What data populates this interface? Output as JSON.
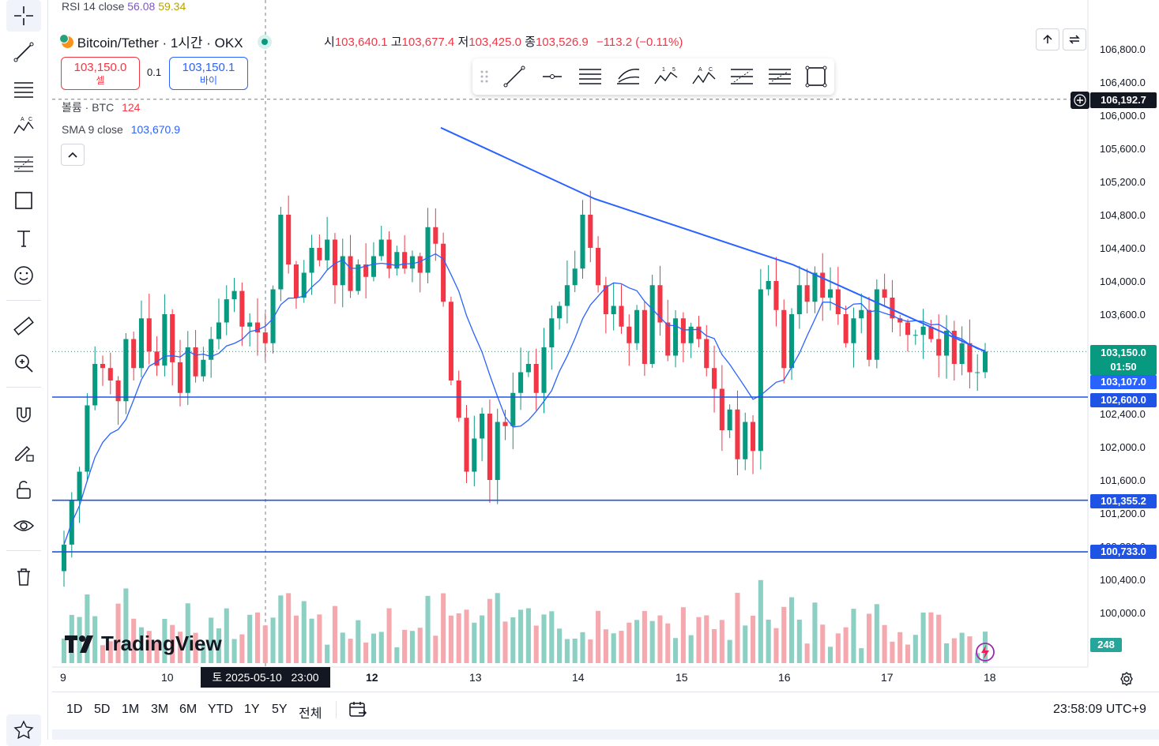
{
  "rsi": {
    "label": "RSI 14 close",
    "v1": "56.08",
    "v2": "59.34"
  },
  "header": {
    "symbol": "Bitcoin/Tether · 1시간 · OKX",
    "open_label": "시",
    "open": "103,640.1",
    "high_label": "고",
    "high": "103,677.4",
    "low_label": "저",
    "low": "103,425.0",
    "close_label": "종",
    "close": "103,526.9",
    "change": "−113.2 (−0.11%)"
  },
  "trade": {
    "sell_price": "103,150.0",
    "sell_label": "셀",
    "spread": "0.1",
    "buy_price": "103,150.1",
    "buy_label": "바이"
  },
  "volume_legend": {
    "label": "볼륨 · BTC",
    "value": "124"
  },
  "sma_legend": {
    "label": "SMA 9 close",
    "value": "103,670.9"
  },
  "crosshair_price": "106,192.7",
  "price_badge": {
    "price": "103,150.0",
    "countdown": "01:50"
  },
  "sma_badge": "103,107.0",
  "hline_badges": [
    "102,600.0",
    "101,355.2",
    "100,733.0"
  ],
  "volume_badge": "248",
  "y_axis_labels": [
    "106,800.0",
    "106,400.0",
    "106,000.0",
    "105,600.0",
    "105,200.0",
    "104,800.0",
    "104,400.0",
    "104,000.0",
    "103,600.0",
    "102,400.0",
    "102,000.0",
    "101,600.0",
    "101,200.0",
    "100,800.0",
    "100,400.0",
    "100,000.0",
    "00.0"
  ],
  "x_axis_labels": [
    "9",
    "10",
    "12",
    "13",
    "14",
    "15",
    "16",
    "17",
    "18"
  ],
  "crosshair_date": "토 2025-05-10   23:00",
  "watermark": "TradingView",
  "ranges": [
    "1D",
    "5D",
    "1M",
    "3M",
    "6M",
    "YTD",
    "1Y",
    "5Y",
    "전체"
  ],
  "clock": "23:58:09 UTC+9",
  "left_toolbar_icons": [
    "crosshair-icon",
    "trend-line-icon",
    "horizontal-lines-icon",
    "pattern-icon",
    "fib-icon",
    "rectangle-icon",
    "text-icon",
    "emoji-icon",
    "ruler-icon",
    "zoom-icon",
    "magnet-icon",
    "lock-draw-icon",
    "lock-icon",
    "eye-icon",
    "trash-icon",
    "star-icon"
  ],
  "drawing_toolbar_icons": [
    "drag-handle-icon",
    "trend-line-icon",
    "horizontal-ray-icon",
    "parallel-channel-icon",
    "pitchfork-icon",
    "elliott-wave-icon",
    "xabcd-pattern-icon",
    "fib-retracement-icon",
    "fib-extension-icon",
    "rectangle-icon"
  ],
  "colors": {
    "up": "#089981",
    "down": "#f23645",
    "sma": "#2962ff",
    "hline": "#1e53e5",
    "vol_up": "#8ccfc3",
    "vol_down": "#f5a9ae"
  },
  "chart_data": {
    "type": "candlestick",
    "symbol": "BTC/USDT",
    "timeframe": "1h",
    "ylim": [
      99600,
      107000
    ],
    "x_ticks": [
      "9",
      "10",
      "12",
      "13",
      "14",
      "15",
      "16",
      "17",
      "18"
    ],
    "horizontal_lines": [
      102600.0,
      101355.2,
      100733.0
    ],
    "trend_line_points": [
      [
        0,
        105850
      ],
      [
        1,
        104990
      ],
      [
        2,
        104200
      ],
      [
        3,
        103150
      ]
    ],
    "closes": [
      100820,
      101350,
      101700,
      102500,
      103000,
      102950,
      102800,
      102550,
      103300,
      102950,
      103550,
      103150,
      102980,
      103600,
      103020,
      102650,
      103200,
      102850,
      103050,
      103300,
      103500,
      103780,
      103880,
      103450,
      103500,
      103380,
      103250,
      103900,
      104800,
      104200,
      103800,
      104100,
      104400,
      104250,
      104500,
      103950,
      104300,
      103880,
      104200,
      104050,
      104300,
      104500,
      104150,
      104350,
      104150,
      104300,
      104100,
      104650,
      104450,
      103750,
      102800,
      102350,
      101700,
      102100,
      102400,
      101600,
      102300,
      102250,
      102650,
      102900,
      103000,
      102650,
      103200,
      103550,
      103700,
      103950,
      104150,
      104800,
      104400,
      103950,
      103600,
      103700,
      103450,
      103250,
      103650,
      103000,
      103950,
      103500,
      103100,
      103550,
      103250,
      103450,
      103300,
      102950,
      102700,
      102200,
      102450,
      101850,
      102300,
      101950,
      103900,
      104000,
      103650,
      102950,
      103600,
      103950,
      103750,
      104100,
      103800,
      103900,
      103600,
      103250,
      103550,
      103650,
      103050,
      103900,
      103800,
      103550,
      103500,
      103350,
      103350,
      103450,
      103300,
      103100,
      103400,
      103000,
      103250,
      102900,
      102900,
      103150
    ]
  }
}
